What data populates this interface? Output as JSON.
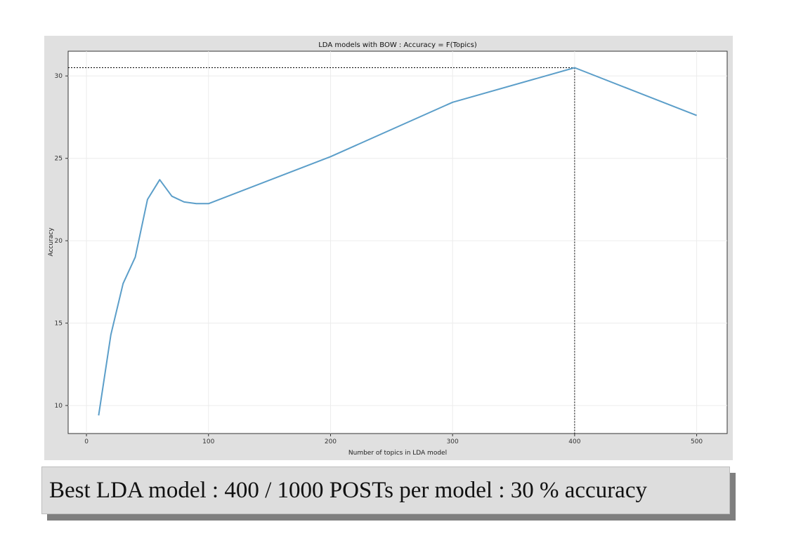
{
  "chart_data": {
    "type": "line",
    "title": "LDA models with BOW : Accuracy = F(Topics)",
    "xlabel": "Number of topics in LDA model",
    "ylabel": "Accuracy",
    "xlim": [
      -15,
      525
    ],
    "ylim": [
      8.3,
      31.5
    ],
    "xticks": [
      0,
      100,
      200,
      300,
      400,
      500
    ],
    "yticks": [
      10,
      15,
      20,
      25,
      30
    ],
    "grid": true,
    "series": [
      {
        "color": "#5b9ec9",
        "x": [
          10,
          20,
          30,
          40,
          50,
          60,
          70,
          80,
          90,
          100,
          200,
          300,
          400,
          500
        ],
        "y": [
          9.4,
          14.3,
          17.4,
          19.0,
          22.5,
          23.7,
          22.7,
          22.35,
          22.25,
          22.25,
          25.1,
          28.4,
          30.5,
          27.6
        ]
      }
    ],
    "highlight": {
      "x": 400,
      "y": 30.5,
      "line_color": "#000000"
    }
  },
  "caption": {
    "text": "Best LDA model : 400 / 1000 POSTs per model : 30 % accuracy"
  }
}
